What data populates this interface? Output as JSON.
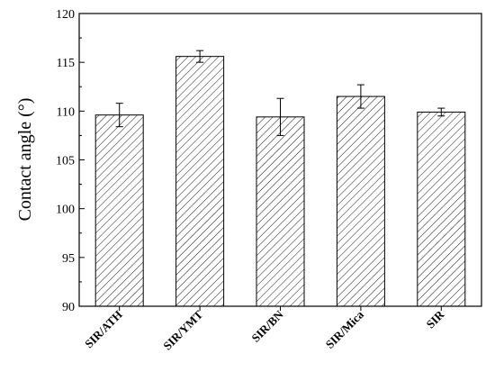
{
  "chart_data": {
    "type": "bar",
    "title": "",
    "xlabel": "",
    "ylabel": "Contact angle (°)",
    "ylim": [
      90,
      120
    ],
    "yticks": [
      90,
      95,
      100,
      105,
      110,
      115,
      120
    ],
    "categories": [
      "SIR/ATH",
      "SIR/YMT",
      "SIR/BN",
      "SIR/Mica",
      "SIR"
    ],
    "values": [
      109.6,
      115.6,
      109.4,
      111.5,
      109.9
    ],
    "errors": [
      1.2,
      0.6,
      1.9,
      1.2,
      0.4
    ],
    "fill_pattern": "diagonal-hatch",
    "grid": false,
    "legend": "none",
    "colors": {
      "bar_stroke": "#000000",
      "hatch": "#000000",
      "background": "#ffffff"
    }
  }
}
